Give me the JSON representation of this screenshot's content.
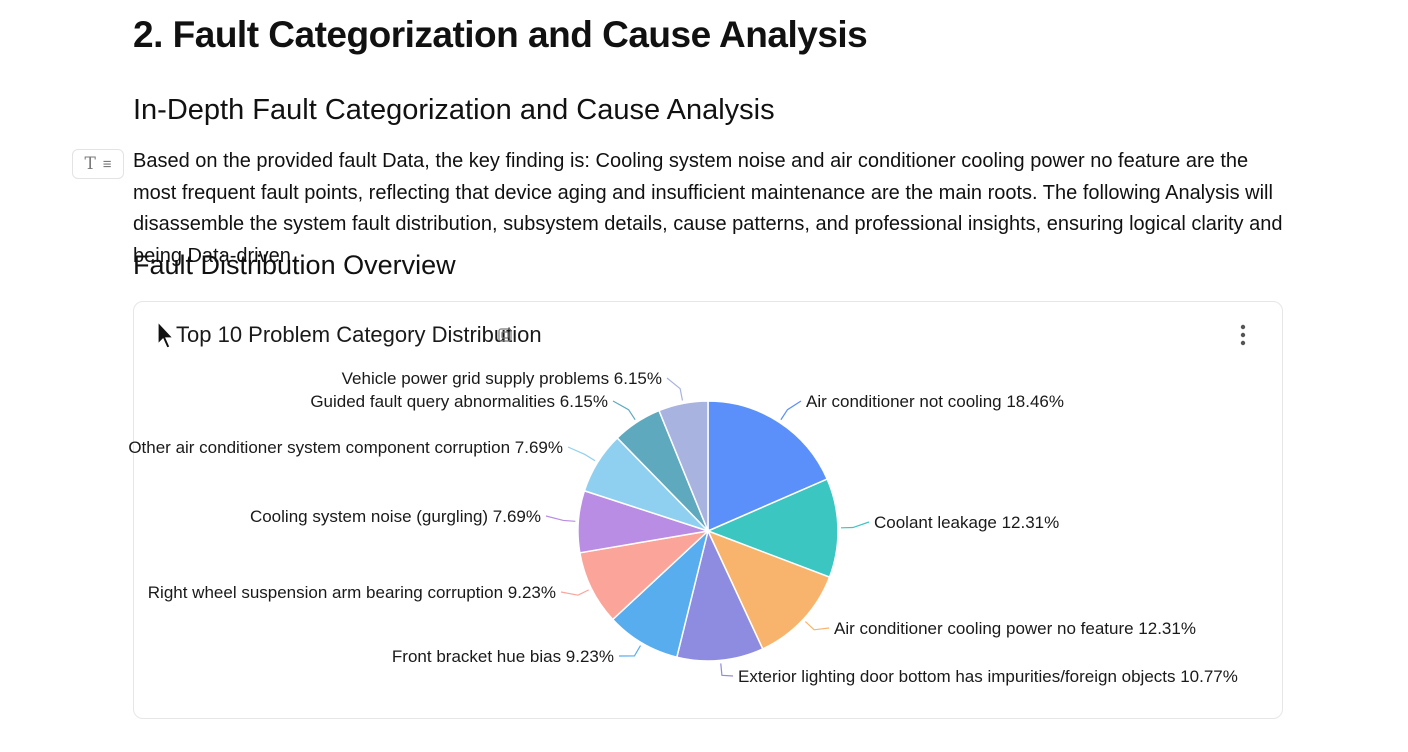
{
  "section_title": "2. Fault Categorization and Cause Analysis",
  "subsection_title": "In-Depth Fault Categorization and Cause Analysis",
  "intro_paragraph": "Based on the provided fault Data, the key finding is: Cooling system noise and air conditioner cooling power no feature are the most frequent fault points, reflecting that device aging and insufficient maintenance are the main roots. The following Analysis will disassemble the system fault distribution, subsystem details, cause patterns, and professional insights, ensuring logical clarity and being Data-driven.",
  "overview_heading": "Fault Distribution Overview",
  "block_handle_icons": [
    "text-type-icon",
    "drag-menu-icon"
  ],
  "chart_card": {
    "title": "Top 10 Problem Category Distribution",
    "icons": [
      "copy-icon",
      "more-vertical-icon"
    ]
  },
  "chart_data": {
    "type": "pie",
    "title": "Top 10 Problem Category Distribution",
    "start_angle": "top, clockwise",
    "slices": [
      {
        "label": "Air conditioner not cooling 18.46%",
        "value": 18.46,
        "color": "#5b8ff9"
      },
      {
        "label": "Coolant leakage 12.31%",
        "value": 12.31,
        "color": "#3cc6c1"
      },
      {
        "label": "Air conditioner cooling power no feature 12.31%",
        "value": 12.31,
        "color": "#f8b46c"
      },
      {
        "label": "Exterior lighting door bottom has impurities/foreign objects 10.77%",
        "value": 10.77,
        "color": "#8d8ce0"
      },
      {
        "label": "Front bracket hue bias 9.23%",
        "value": 9.23,
        "color": "#58adee"
      },
      {
        "label": "Right wheel suspension arm bearing corruption 9.23%",
        "value": 9.23,
        "color": "#fba49a"
      },
      {
        "label": "Cooling system noise (gurgling) 7.69%",
        "value": 7.69,
        "color": "#b98de4"
      },
      {
        "label": "Other air conditioner system component corruption 7.69%",
        "value": 7.69,
        "color": "#8fd0f0"
      },
      {
        "label": "Guided fault query abnormalities 6.15%",
        "value": 6.15,
        "color": "#5fa9bf"
      },
      {
        "label": "Vehicle power grid supply problems 6.15%",
        "value": 6.15,
        "color": "#a9b3e0"
      }
    ]
  }
}
